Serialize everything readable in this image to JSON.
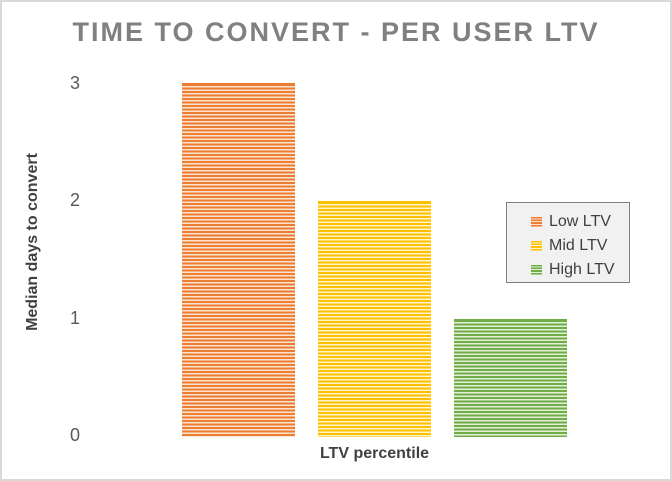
{
  "window": {
    "background": "#FFFFFF",
    "border_color": "#D9D9D9"
  },
  "chart_data": {
    "type": "bar",
    "title": "TIME TO CONVERT - PER USER LTV",
    "xlabel": "LTV percentile",
    "ylabel": "Median days to convert",
    "categories": [
      "Low LTV",
      "Mid LTV",
      "High LTV"
    ],
    "values": [
      3,
      2,
      1
    ],
    "ylim": [
      0,
      3
    ],
    "yticks": [
      0,
      1,
      2,
      3
    ],
    "ytick_labels_top_down": [
      "3",
      "2",
      "1",
      "0"
    ],
    "grid": false,
    "bar_pattern": "horizontal-stripes",
    "legend_position": "middle-right",
    "series_colors": [
      {
        "name": "Low LTV",
        "accent": "#ED7D31",
        "tint": "#FBE3D1"
      },
      {
        "name": "Mid LTV",
        "accent": "#FFC000",
        "tint": "#FFF3CC"
      },
      {
        "name": "High LTV",
        "accent": "#70AD47",
        "tint": "#E3EFD9"
      }
    ]
  },
  "legend": {
    "background": "#F1F1F1",
    "border_color": "#7F7F7F",
    "items": [
      {
        "label": "Low LTV"
      },
      {
        "label": "Mid LTV"
      },
      {
        "label": "High LTV"
      }
    ]
  },
  "text_colors": {
    "title": "#808080",
    "tick": "#595959",
    "axis_label": "#404040"
  }
}
